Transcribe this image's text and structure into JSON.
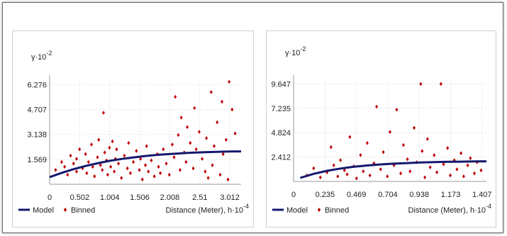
{
  "chart_data": [
    {
      "type": "scatter",
      "title": "",
      "ylabel": "γ·10",
      "ylabel_exp": "-2",
      "xlabel": "Distance (Meter), h·10",
      "xlabel_exp": "-4",
      "xlim": [
        0,
        3.2
      ],
      "ylim": [
        0,
        6.6
      ],
      "xticks": [
        "0",
        "0.502",
        "1.004",
        "1.506",
        "2.008",
        "2.51",
        "3.012"
      ],
      "xtick_values": [
        0,
        0.502,
        1.004,
        1.506,
        2.008,
        2.51,
        3.012
      ],
      "yticks": [
        "1.569",
        "3.138",
        "4.707",
        "6.276"
      ],
      "ytick_values": [
        1.569,
        3.138,
        4.707,
        6.276
      ],
      "legend": {
        "model": "Model",
        "binned": "Binned",
        "position": "bottom-left"
      },
      "series": [
        {
          "name": "Model",
          "type": "line",
          "color": "#14186e",
          "x": [
            0.0,
            0.2,
            0.4,
            0.6,
            0.8,
            1.0,
            1.2,
            1.4,
            1.6,
            1.8,
            2.0,
            2.2,
            2.4,
            2.6,
            2.8,
            3.0,
            3.2
          ],
          "y": [
            0.45,
            0.72,
            0.95,
            1.15,
            1.32,
            1.47,
            1.59,
            1.69,
            1.78,
            1.85,
            1.9,
            1.95,
            1.99,
            2.02,
            2.04,
            2.06,
            2.07
          ]
        },
        {
          "name": "Binned",
          "type": "scatter",
          "color": "#c00000",
          "x": [
            0.1,
            0.2,
            0.25,
            0.3,
            0.35,
            0.4,
            0.45,
            0.45,
            0.5,
            0.55,
            0.6,
            0.62,
            0.65,
            0.7,
            0.72,
            0.75,
            0.8,
            0.82,
            0.85,
            0.88,
            0.9,
            0.92,
            0.95,
            0.97,
            1.0,
            1.02,
            1.05,
            1.08,
            1.1,
            1.12,
            1.15,
            1.2,
            1.25,
            1.3,
            1.32,
            1.35,
            1.4,
            1.45,
            1.5,
            1.52,
            1.55,
            1.6,
            1.62,
            1.65,
            1.7,
            1.75,
            1.8,
            1.82,
            1.85,
            1.9,
            1.95,
            2.0,
            2.05,
            2.08,
            2.1,
            2.15,
            2.18,
            2.2,
            2.25,
            2.28,
            2.3,
            2.35,
            2.4,
            2.42,
            2.45,
            2.5,
            2.55,
            2.6,
            2.62,
            2.65,
            2.7,
            2.72,
            2.75,
            2.8,
            2.85,
            2.88,
            2.9,
            2.95,
            2.98,
            3.0,
            3.05,
            3.1
          ],
          "y": [
            0.9,
            1.4,
            1.1,
            0.6,
            1.8,
            1.3,
            0.8,
            1.6,
            2.2,
            1.0,
            1.9,
            0.7,
            1.4,
            2.5,
            1.1,
            0.5,
            1.7,
            2.8,
            1.2,
            0.9,
            4.5,
            2.0,
            1.5,
            0.6,
            2.3,
            1.1,
            2.7,
            0.8,
            1.6,
            2.2,
            1.3,
            0.4,
            1.8,
            1.0,
            2.6,
            0.7,
            1.4,
            2.1,
            0.9,
            1.6,
            0.3,
            1.2,
            2.4,
            0.8,
            1.5,
            0.5,
            1.9,
            1.1,
            0.7,
            2.2,
            1.3,
            0.6,
            2.5,
            1.7,
            5.5,
            3.1,
            0.9,
            4.2,
            2.0,
            1.4,
            3.6,
            2.6,
            1.0,
            4.8,
            2.2,
            3.3,
            1.6,
            0.8,
            2.9,
            0.4,
            5.8,
            1.2,
            2.4,
            3.9,
            0.6,
            5.2,
            1.9,
            2.8,
            0.3,
            6.45,
            4.7,
            3.2
          ]
        }
      ]
    },
    {
      "type": "scatter",
      "title": "",
      "ylabel": "γ·10",
      "ylabel_exp": "-2",
      "xlabel": "Distance (Meter), h·10",
      "xlabel_exp": "-4",
      "xlim": [
        0,
        1.44
      ],
      "ylim": [
        0,
        10.1
      ],
      "xticks": [
        "0",
        "0.235",
        "0.469",
        "0.704",
        "0.938",
        "1.173",
        "1.407"
      ],
      "xtick_values": [
        0,
        0.235,
        0.469,
        0.704,
        0.938,
        1.173,
        1.407
      ],
      "yticks": [
        "2.412",
        "4.824",
        "7.235",
        "9.647"
      ],
      "ytick_values": [
        2.412,
        4.824,
        7.235,
        9.647
      ],
      "legend": {
        "model": "Model",
        "binned": "Binned",
        "position": "bottom-left"
      },
      "series": [
        {
          "name": "Model",
          "type": "line",
          "color": "#14186e",
          "x": [
            0.05,
            0.15,
            0.25,
            0.35,
            0.45,
            0.55,
            0.65,
            0.75,
            0.85,
            0.95,
            1.05,
            1.15,
            1.25,
            1.35,
            1.44
          ],
          "y": [
            0.35,
            0.75,
            1.05,
            1.28,
            1.45,
            1.58,
            1.68,
            1.76,
            1.82,
            1.87,
            1.91,
            1.94,
            1.96,
            1.98,
            1.99
          ]
        },
        {
          "name": "Binned",
          "type": "scatter",
          "color": "#c00000",
          "x": [
            0.1,
            0.15,
            0.2,
            0.25,
            0.28,
            0.3,
            0.33,
            0.35,
            0.38,
            0.4,
            0.42,
            0.45,
            0.47,
            0.5,
            0.52,
            0.55,
            0.57,
            0.6,
            0.62,
            0.65,
            0.67,
            0.7,
            0.72,
            0.75,
            0.77,
            0.8,
            0.82,
            0.85,
            0.87,
            0.9,
            0.92,
            0.95,
            0.96,
            0.98,
            1.0,
            1.02,
            1.05,
            1.07,
            1.1,
            1.12,
            1.15,
            1.17,
            1.2,
            1.22,
            1.25,
            1.27,
            1.3,
            1.32,
            1.35,
            1.37,
            1.4
          ],
          "y": [
            0.6,
            1.3,
            0.4,
            0.9,
            3.4,
            1.6,
            0.5,
            2.1,
            1.1,
            0.7,
            4.4,
            1.5,
            0.3,
            2.6,
            1.0,
            3.8,
            0.6,
            1.8,
            7.4,
            1.2,
            2.9,
            0.5,
            4.9,
            1.6,
            7.1,
            0.8,
            3.6,
            2.2,
            1.0,
            5.3,
            1.9,
            9.65,
            3.0,
            0.4,
            4.2,
            1.4,
            2.6,
            0.9,
            9.65,
            1.7,
            3.3,
            0.6,
            2.1,
            1.2,
            2.8,
            0.5,
            1.6,
            2.3,
            0.8,
            1.9,
            1.1
          ]
        }
      ]
    }
  ]
}
